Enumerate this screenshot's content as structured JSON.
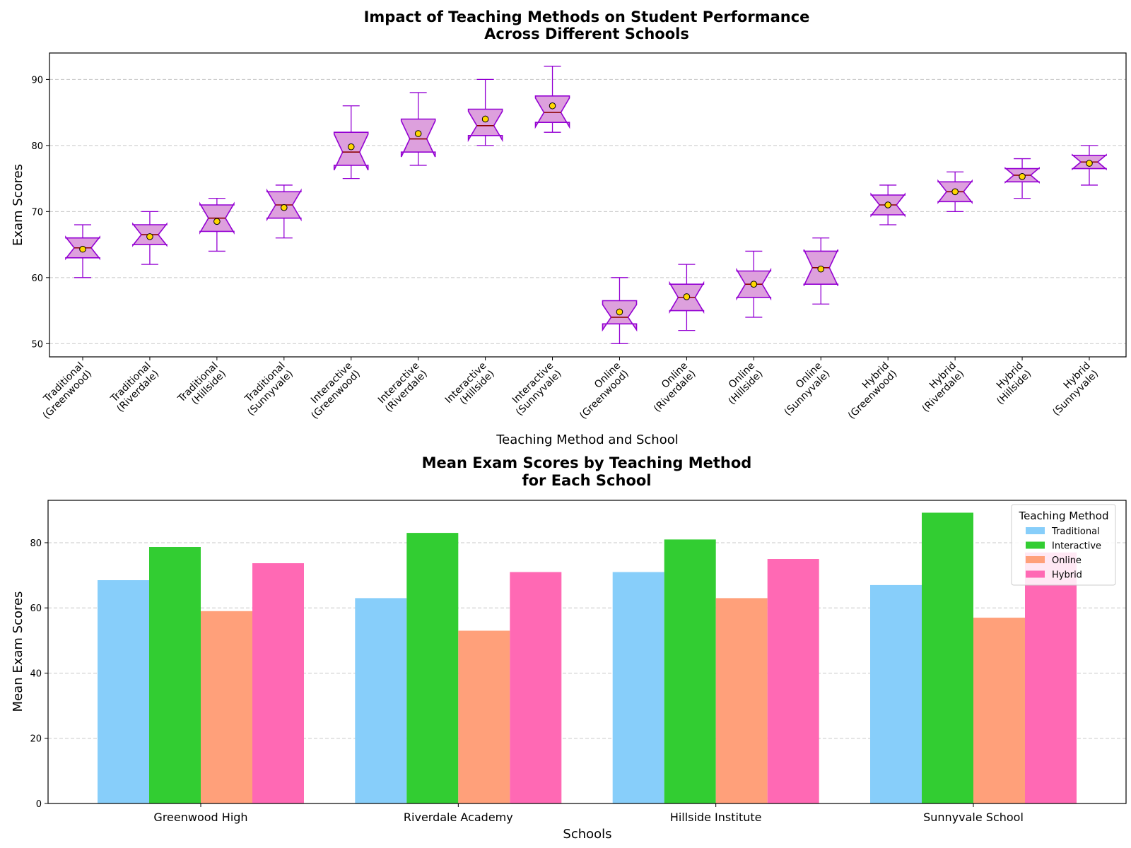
{
  "chart_data": [
    {
      "type": "box",
      "title_lines": [
        "Impact of Teaching Methods on Student Performance",
        "Across Different Schools"
      ],
      "xlabel": "Teaching Method and School",
      "ylabel": "Exam Scores",
      "ylim": [
        48,
        94
      ],
      "yticks": [
        50,
        60,
        70,
        80,
        90
      ],
      "grid": true,
      "box_fill": "#dda0dd",
      "box_edge": "#9400d3",
      "median_color": "#8b0000",
      "mean_marker_color": "#ffd700",
      "categories": [
        {
          "label_lines": [
            "Traditional",
            "(Greenwood)"
          ],
          "min": 60,
          "q1": 63,
          "median": 64.5,
          "q3": 66,
          "max": 68,
          "mean": 64.3
        },
        {
          "label_lines": [
            "Traditional",
            "(Riverdale)"
          ],
          "min": 62,
          "q1": 65,
          "median": 66.5,
          "q3": 68,
          "max": 70,
          "mean": 66.2
        },
        {
          "label_lines": [
            "Traditional",
            "(Hillside)"
          ],
          "min": 64,
          "q1": 67,
          "median": 69,
          "q3": 71,
          "max": 72,
          "mean": 68.5
        },
        {
          "label_lines": [
            "Traditional",
            "(Sunnyvale)"
          ],
          "min": 66,
          "q1": 69,
          "median": 71,
          "q3": 73,
          "max": 74,
          "mean": 70.6
        },
        {
          "label_lines": [
            "Interactive",
            "(Greenwood)"
          ],
          "min": 75,
          "q1": 77,
          "median": 79,
          "q3": 82,
          "max": 86,
          "mean": 79.8
        },
        {
          "label_lines": [
            "Interactive",
            "(Riverdale)"
          ],
          "min": 77,
          "q1": 79,
          "median": 81,
          "q3": 84,
          "max": 88,
          "mean": 81.8
        },
        {
          "label_lines": [
            "Interactive",
            "(Hillside)"
          ],
          "min": 80,
          "q1": 81.5,
          "median": 83,
          "q3": 85.5,
          "max": 90,
          "mean": 84
        },
        {
          "label_lines": [
            "Interactive",
            "(Sunnyvale)"
          ],
          "min": 82,
          "q1": 83.5,
          "median": 85,
          "q3": 87.5,
          "max": 92,
          "mean": 86
        },
        {
          "label_lines": [
            "Online",
            "(Greenwood)"
          ],
          "min": 50,
          "q1": 53,
          "median": 54,
          "q3": 56.5,
          "max": 60,
          "mean": 54.8
        },
        {
          "label_lines": [
            "Online",
            "(Riverdale)"
          ],
          "min": 52,
          "q1": 55,
          "median": 57,
          "q3": 59,
          "max": 62,
          "mean": 57.1
        },
        {
          "label_lines": [
            "Online",
            "(Hillside)"
          ],
          "min": 54,
          "q1": 57,
          "median": 59,
          "q3": 61,
          "max": 64,
          "mean": 59
        },
        {
          "label_lines": [
            "Online",
            "(Sunnyvale)"
          ],
          "min": 56,
          "q1": 59,
          "median": 61.5,
          "q3": 64,
          "max": 66,
          "mean": 61.3
        },
        {
          "label_lines": [
            "Hybrid",
            "(Greenwood)"
          ],
          "min": 68,
          "q1": 69.5,
          "median": 71,
          "q3": 72.5,
          "max": 74,
          "mean": 71
        },
        {
          "label_lines": [
            "Hybrid",
            "(Riverdale)"
          ],
          "min": 70,
          "q1": 71.5,
          "median": 73,
          "q3": 74.5,
          "max": 76,
          "mean": 73
        },
        {
          "label_lines": [
            "Hybrid",
            "(Hillside)"
          ],
          "min": 72,
          "q1": 74.5,
          "median": 75.5,
          "q3": 76.5,
          "max": 78,
          "mean": 75.3
        },
        {
          "label_lines": [
            "Hybrid",
            "(Sunnyvale)"
          ],
          "min": 74,
          "q1": 76.5,
          "median": 77.5,
          "q3": 78.5,
          "max": 80,
          "mean": 77.3
        }
      ]
    },
    {
      "type": "bar",
      "title_lines": [
        "Mean Exam Scores by Teaching Method",
        "for Each School"
      ],
      "xlabel": "Schools",
      "ylabel": "Mean Exam Scores",
      "ylim": [
        0,
        93
      ],
      "yticks": [
        0,
        20,
        40,
        60,
        80
      ],
      "grid": true,
      "legend": {
        "title": "Teaching Method",
        "placement": "top-right"
      },
      "categories": [
        "Greenwood High",
        "Riverdale Academy",
        "Hillside Institute",
        "Sunnyvale School"
      ],
      "series": [
        {
          "name": "Traditional",
          "color": "#87cefa",
          "values": [
            68.5,
            63,
            71,
            67
          ]
        },
        {
          "name": "Interactive",
          "color": "#32cd32",
          "values": [
            78.7,
            83,
            81,
            89.2
          ]
        },
        {
          "name": "Online",
          "color": "#ffa07a",
          "values": [
            59,
            53,
            63,
            57
          ]
        },
        {
          "name": "Hybrid",
          "color": "#ff69b4",
          "values": [
            73.7,
            71,
            75,
            77
          ]
        }
      ]
    }
  ]
}
